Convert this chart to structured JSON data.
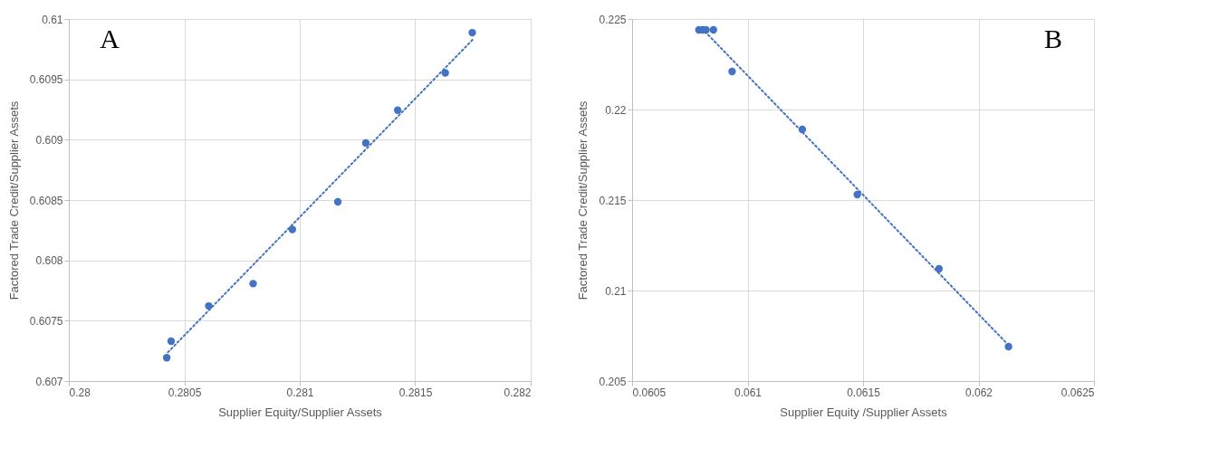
{
  "chart_data": [
    {
      "type": "scatter",
      "xlabel": "Supplier Equity/Supplier Assets",
      "ylabel": "Factored Trade Credit/Supplier Assets",
      "annotations": [
        "A"
      ],
      "xlim": [
        0.28,
        0.282
      ],
      "xticks": [
        0.28,
        0.2805,
        0.281,
        0.2815,
        0.282
      ],
      "ylim": [
        0.607,
        0.61
      ],
      "yticks": [
        0.607,
        0.6075,
        0.608,
        0.6085,
        0.609,
        0.6095,
        0.61
      ],
      "grid": true,
      "series": [
        {
          "marker": "circle",
          "color": "#4472c4",
          "x": [
            0.280424,
            0.280443,
            0.280606,
            0.280798,
            0.280968,
            0.281165,
            0.281286,
            0.281424,
            0.28163,
            0.281747
          ],
          "values": [
            0.607193,
            0.60733,
            0.607622,
            0.607807,
            0.608256,
            0.608485,
            0.608973,
            0.609244,
            0.609554,
            0.609887
          ]
        },
        {
          "type": "line",
          "line_style": "dotted",
          "color": "#4472c4",
          "x": [
            0.280429,
            0.281748
          ],
          "values": [
            0.607238,
            0.609827
          ]
        }
      ]
    },
    {
      "type": "scatter",
      "xlabel": "Supplier Equity /Supplier Assets",
      "ylabel": "Factored Trade Credit/Supplier Assets",
      "annotations": [
        "B"
      ],
      "xlim": [
        0.0605,
        0.0625
      ],
      "xticks": [
        0.0605,
        0.061,
        0.0615,
        0.062,
        0.0625
      ],
      "ylim": [
        0.205,
        0.225
      ],
      "yticks": [
        0.205,
        0.21,
        0.215,
        0.22,
        0.225
      ],
      "grid": true,
      "series": [
        {
          "marker": "circle",
          "color": "#4472c4",
          "x": [
            0.060789,
            0.060805,
            0.06082,
            0.060852,
            0.060933,
            0.061237,
            0.061475,
            0.061829,
            0.06213
          ],
          "values": [
            0.2244,
            0.2244,
            0.2244,
            0.2244,
            0.2221,
            0.2189,
            0.2153,
            0.2112,
            0.2069
          ]
        },
        {
          "type": "line",
          "line_style": "dotted",
          "color": "#4472c4",
          "x": [
            0.060816,
            0.062121
          ],
          "values": [
            0.2243,
            0.2071
          ]
        }
      ]
    }
  ]
}
